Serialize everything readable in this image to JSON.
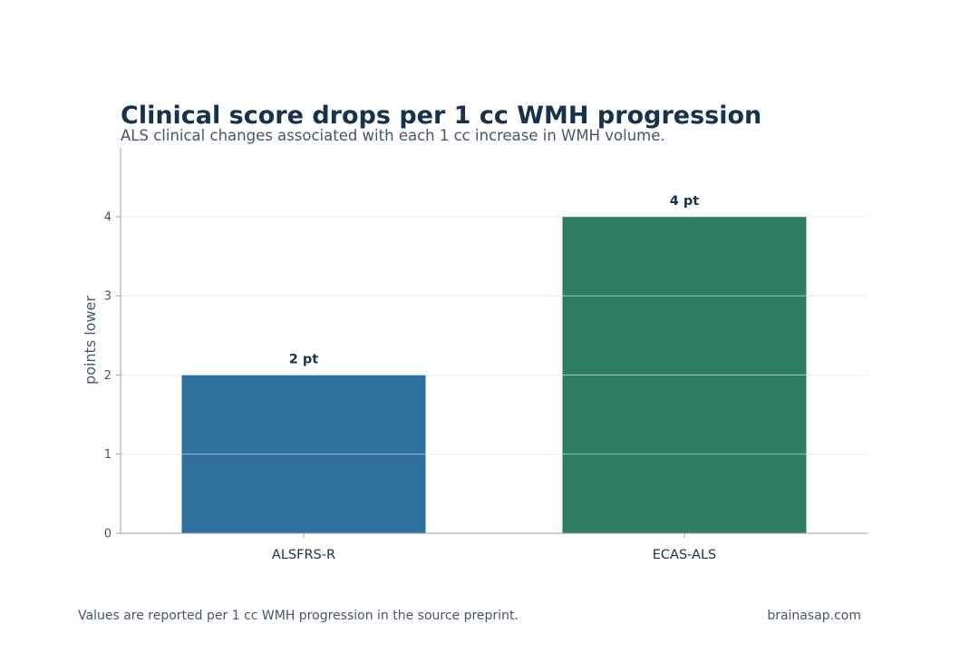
{
  "header": {
    "title": "Clinical score drops per 1 cc WMH progression",
    "subtitle": "ALS clinical changes associated with each 1 cc increase in WMH volume."
  },
  "footer": {
    "note": "Values are reported per 1 cc WMH progression in the source preprint.",
    "brand": "brainasap.com"
  },
  "chart_data": {
    "type": "bar",
    "title": "Clinical score drops per 1 cc WMH progression",
    "subtitle": "ALS clinical changes associated with each 1 cc increase in WMH volume.",
    "xlabel": "",
    "ylabel": "points lower",
    "categories": [
      "ALSFRS-R",
      "ECAS-ALS"
    ],
    "values": [
      2,
      4
    ],
    "data_labels": [
      "2 pt",
      "4 pt"
    ],
    "colors": [
      "#2f6f9f",
      "#2e7d62"
    ],
    "ylim": [
      0,
      4.87
    ],
    "yticks": [
      0,
      1,
      2,
      3,
      4
    ],
    "grid": true,
    "gridline_color": "#dde3ea",
    "legend": "none"
  }
}
